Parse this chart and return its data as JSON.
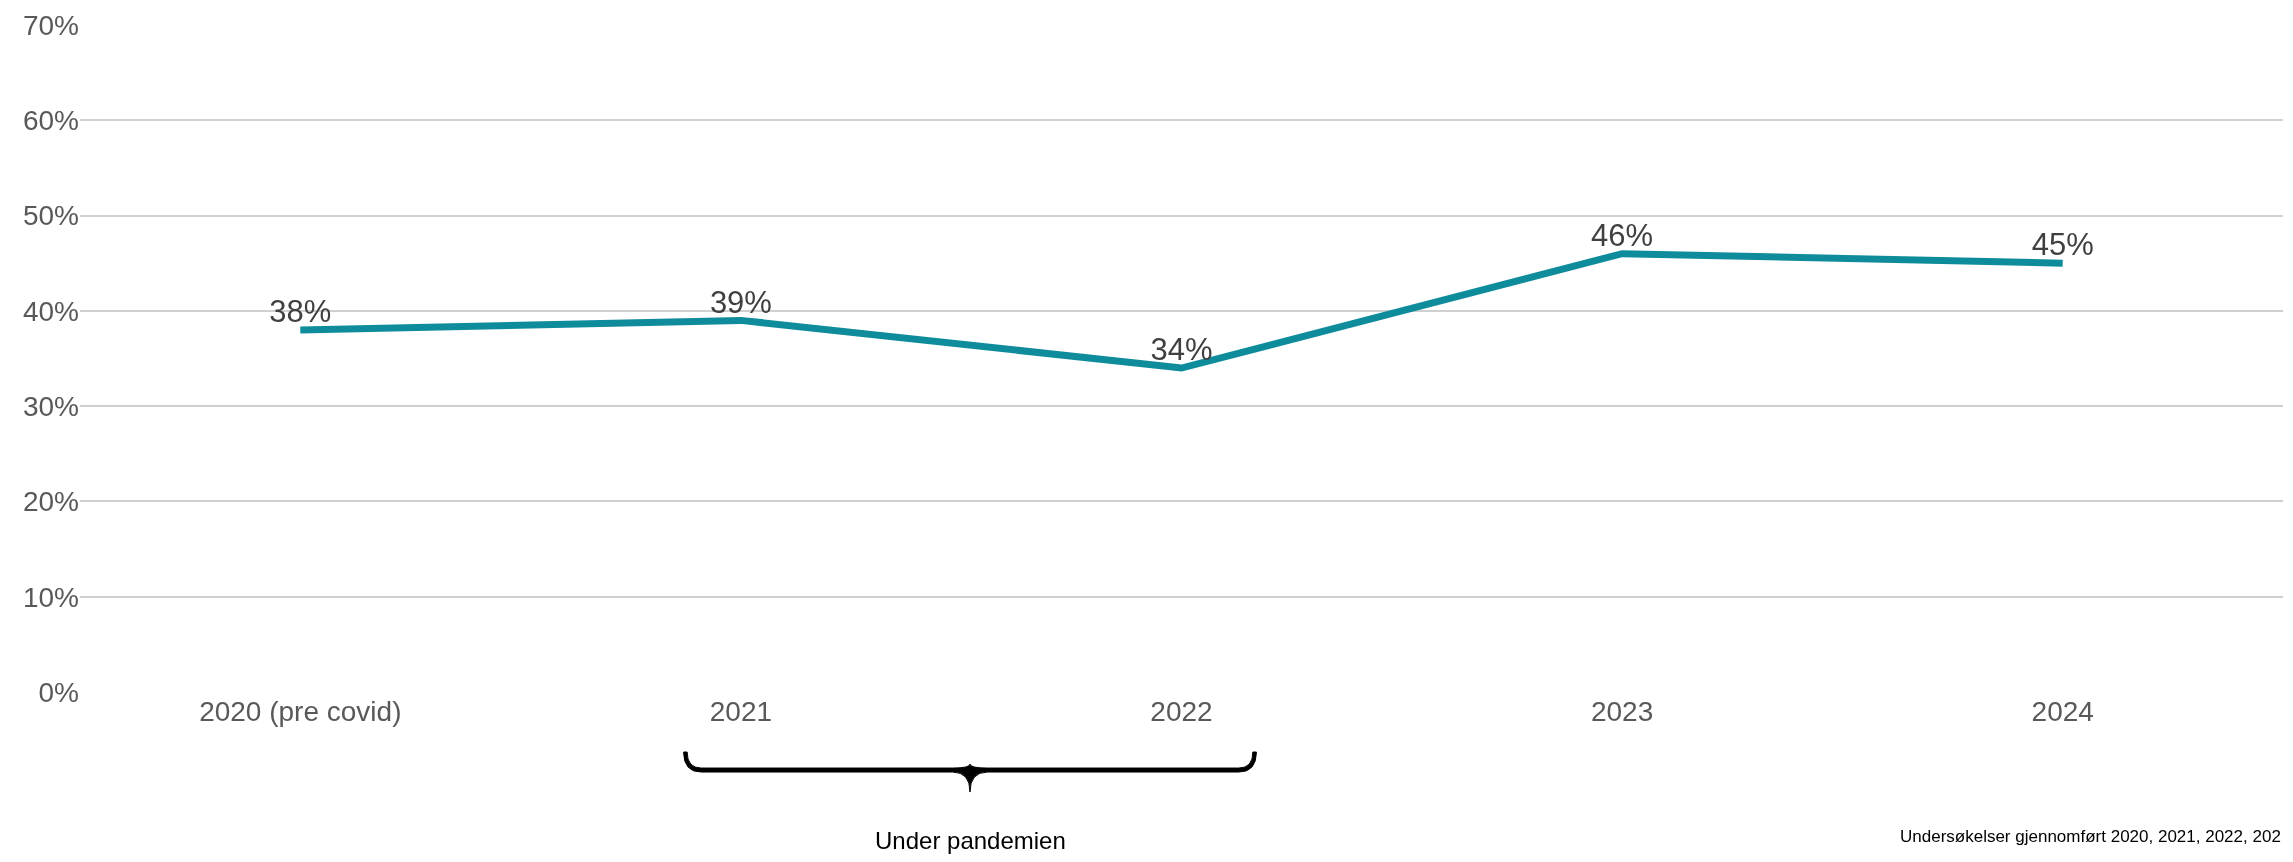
{
  "chart_data": {
    "type": "line",
    "categories": [
      "2020 (pre covid)",
      "2021",
      "2022",
      "2023",
      "2024"
    ],
    "series": [
      {
        "color": "#0e8c9c",
        "values": [
          38,
          39,
          34,
          46,
          45
        ],
        "value_labels": [
          "38%",
          "39%",
          "34%",
          "46%",
          "45%"
        ]
      }
    ],
    "ylim": [
      0,
      70
    ],
    "yticks": [
      {
        "value": 0,
        "label": "0%"
      },
      {
        "value": 10,
        "label": "10%"
      },
      {
        "value": 20,
        "label": "20%"
      },
      {
        "value": 30,
        "label": "30%"
      },
      {
        "value": 40,
        "label": "40%"
      },
      {
        "value": 50,
        "label": "50%"
      },
      {
        "value": 60,
        "label": "60%"
      },
      {
        "value": 70,
        "label": "70%"
      }
    ],
    "grid": "y",
    "legend": false,
    "marker": "none",
    "line_style": "solid",
    "annotations": [
      "Under pandemien",
      "Undersøkelser gjennomført 2020, 2021, 2022, 202"
    ]
  }
}
